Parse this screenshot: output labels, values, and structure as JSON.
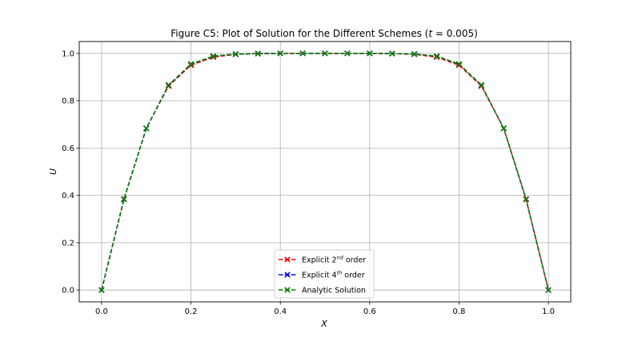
{
  "chart_data": {
    "type": "line",
    "title_main": "Figure C5: Plot of Solution for the Different Schemes (",
    "title_var": "t",
    "title_val": " = 0.005)",
    "xlabel": "X",
    "ylabel": "U",
    "xlim": [
      -0.05,
      1.05
    ],
    "ylim": [
      -0.05,
      1.05
    ],
    "xticks": [
      0.0,
      0.2,
      0.4,
      0.6,
      0.8,
      1.0
    ],
    "xtick_labels": [
      "0.0",
      "0.2",
      "0.4",
      "0.6",
      "0.8",
      "1.0"
    ],
    "yticks": [
      0.0,
      0.2,
      0.4,
      0.6,
      0.8,
      1.0
    ],
    "ytick_labels": [
      "0.0",
      "0.2",
      "0.4",
      "0.6",
      "0.8",
      "1.0"
    ],
    "grid": true,
    "legend_position": "lower-center",
    "x": [
      0.0,
      0.05,
      0.1,
      0.15,
      0.2,
      0.25,
      0.3,
      0.35,
      0.4,
      0.45,
      0.5,
      0.55,
      0.6,
      0.65,
      0.7,
      0.75,
      0.8,
      0.85,
      0.9,
      0.95,
      1.0
    ],
    "series": [
      {
        "legend_pre": "Explicit 2",
        "legend_sup": "nd",
        "legend_post": " order",
        "color": "#ff0000",
        "values": [
          0.0,
          0.385,
          0.683,
          0.862,
          0.95,
          0.984,
          0.996,
          0.999,
          1.0,
          1.0,
          1.0,
          1.0,
          1.0,
          0.999,
          0.996,
          0.984,
          0.95,
          0.862,
          0.683,
          0.385,
          0.0
        ]
      },
      {
        "legend_pre": "Explicit 4",
        "legend_sup": "th",
        "legend_post": " order",
        "color": "#0000ff",
        "values": [
          0.0,
          0.383,
          0.683,
          0.866,
          0.954,
          0.988,
          0.997,
          0.999,
          1.0,
          1.0,
          1.0,
          1.0,
          1.0,
          0.999,
          0.997,
          0.988,
          0.954,
          0.866,
          0.683,
          0.383,
          0.0
        ]
      },
      {
        "legend_pre": "Analytic Solution",
        "legend_sup": "",
        "legend_post": "",
        "color": "#008000",
        "values": [
          0.0,
          0.383,
          0.683,
          0.866,
          0.955,
          0.988,
          0.997,
          0.999,
          1.0,
          1.0,
          1.0,
          1.0,
          1.0,
          0.999,
          0.997,
          0.988,
          0.955,
          0.866,
          0.683,
          0.383,
          0.0
        ]
      }
    ]
  }
}
